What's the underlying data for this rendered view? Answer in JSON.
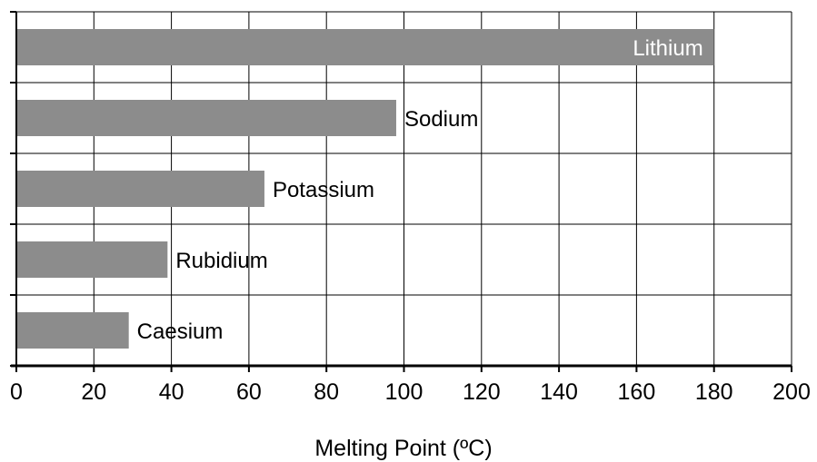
{
  "chart_data": {
    "type": "bar",
    "orientation": "horizontal",
    "categories": [
      "Lithium",
      "Sodium",
      "Potassium",
      "Rubidium",
      "Caesium"
    ],
    "values": [
      180,
      98,
      64,
      39,
      29
    ],
    "title": "",
    "xlabel": "Melting Point (ºC)",
    "ylabel": "",
    "xlim": [
      0,
      200
    ],
    "xticks": [
      "0",
      "20",
      "40",
      "60",
      "80",
      "100",
      "120",
      "140",
      "160",
      "180",
      "200"
    ],
    "grid": true,
    "legend": "none",
    "bar_color": "#8c8c8c",
    "grid_color": "#000000",
    "label_colors": {
      "inside": "#ffffff",
      "outside": "#000000"
    }
  }
}
